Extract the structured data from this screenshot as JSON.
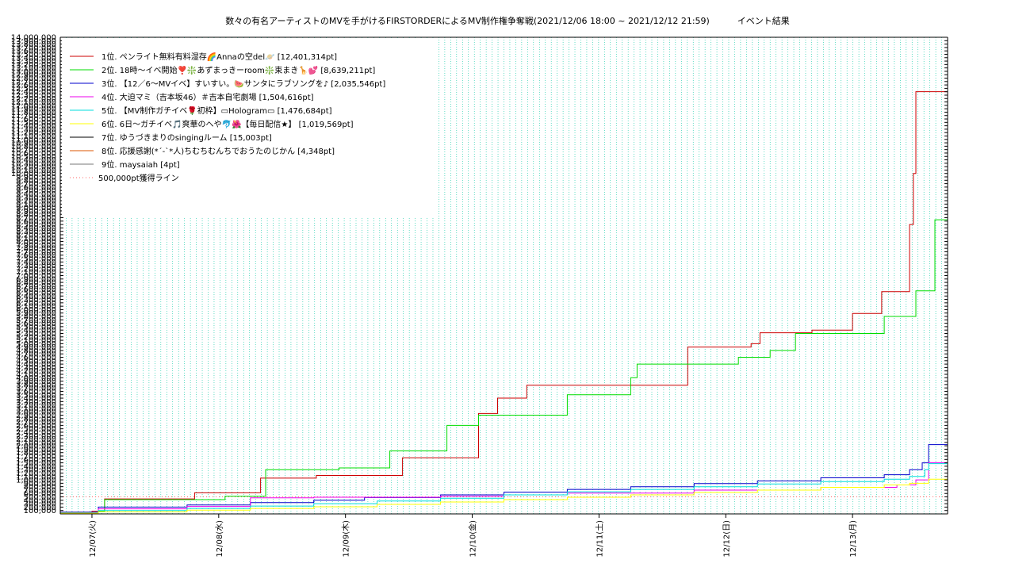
{
  "chart_data": {
    "type": "line",
    "title": "数々の有名アーティストのMVを手がけるFIRSTORDERによるMV制作権争奪戦(2021/12/06 18:00 ~ 2021/12/12 21:59)          イベント結果",
    "xlabel": "",
    "ylabel": "",
    "x_ticks": [
      "12/07(火)",
      "12/08(水)",
      "12/09(木)",
      "12/10(金)",
      "12/11(土)",
      "12/12(日)",
      "12/13(月)"
    ],
    "x_range": [
      "2021-12-06 18:00",
      "2021-12-13 00:00"
    ],
    "ylim": [
      0,
      14000000
    ],
    "grid": true,
    "legend_position": "top-left",
    "series": [
      {
        "name": "1位. ペンライト無料有料湿存🌈Annaの空del🪐 [12,401,314pt]",
        "color": "#cc0000",
        "x": [
          0.0,
          0.25,
          0.35,
          1.05,
          1.06,
          1.55,
          1.58,
          2.0,
          2.02,
          2.2,
          2.7,
          2.72,
          3.3,
          3.4,
          3.45,
          3.65,
          3.68,
          4.9,
          4.95,
          5.4,
          5.45,
          5.5,
          5.52,
          5.9,
          5.93,
          6.2,
          6.25,
          6.45,
          6.48,
          6.62,
          6.7,
          6.73,
          6.75,
          7.0
        ],
        "y": [
          50000,
          80000,
          440000,
          440000,
          620000,
          620000,
          1050000,
          1050000,
          1130000,
          1130000,
          1650000,
          1650000,
          2950000,
          2950000,
          3400000,
          3400000,
          3780000,
          3780000,
          4900000,
          4900000,
          5000000,
          5000000,
          5320000,
          5320000,
          5400000,
          5400000,
          5890000,
          5890000,
          6530000,
          6530000,
          8500000,
          10000000,
          12401314,
          12401314
        ]
      },
      {
        "name": "2位. 18時〜イベ開始❣️❇️あずまっきーroom❇️束まき🦒💕 [8,639,211pt]",
        "color": "#00dd00",
        "x": [
          0.0,
          0.3,
          0.35,
          1.05,
          1.3,
          1.55,
          1.62,
          2.1,
          2.2,
          2.55,
          2.6,
          2.95,
          3.05,
          3.25,
          3.3,
          3.95,
          4.0,
          4.4,
          4.5,
          4.55,
          5.3,
          5.35,
          5.55,
          5.6,
          5.75,
          5.8,
          6.45,
          6.5,
          6.65,
          6.75,
          6.88,
          6.9,
          7.0
        ],
        "y": [
          40000,
          80000,
          420000,
          420000,
          520000,
          520000,
          1300000,
          1300000,
          1350000,
          1350000,
          1850000,
          1850000,
          2600000,
          2600000,
          2900000,
          2900000,
          3500000,
          3500000,
          4000000,
          4400000,
          4400000,
          4600000,
          4600000,
          4800000,
          4800000,
          5300000,
          5300000,
          5800000,
          5800000,
          6550000,
          6550000,
          8639211,
          8639211
        ]
      },
      {
        "name": "3位. 【12／6〜MVイベ】すいすい。🍉サンタにラブソングを♪ [2,035,546pt]",
        "color": "#0000cc",
        "x": [
          0.0,
          0.3,
          1.0,
          1.5,
          2.0,
          2.4,
          3.0,
          3.5,
          4.0,
          4.5,
          5.0,
          5.5,
          6.0,
          6.5,
          6.7,
          6.8,
          6.85,
          7.0
        ],
        "y": [
          50000,
          200000,
          260000,
          330000,
          400000,
          480000,
          560000,
          640000,
          720000,
          800000,
          890000,
          970000,
          1060000,
          1150000,
          1300000,
          1500000,
          2035546,
          2035546
        ]
      },
      {
        "name": "4位. 大迫マミ（吉本坂46）＃吉本自宅劇場 [1,504,616pt]",
        "color": "#ee00ee",
        "x": [
          0.0,
          0.3,
          1.0,
          1.5,
          2.0,
          3.0,
          3.5,
          4.0,
          5.0,
          6.0,
          6.6,
          6.75,
          6.85,
          7.0
        ],
        "y": [
          30000,
          150000,
          220000,
          470000,
          490000,
          520000,
          560000,
          610000,
          700000,
          780000,
          850000,
          1000000,
          1504616,
          1504616
        ]
      },
      {
        "name": "5位. 【MV制作ガチイベ🌹初枠】▭Hologram▭ [1,476,684pt]",
        "color": "#00dddd",
        "x": [
          0.0,
          0.3,
          1.0,
          1.5,
          2.0,
          2.5,
          3.0,
          3.5,
          4.0,
          4.5,
          5.0,
          5.5,
          6.0,
          6.5,
          6.7,
          6.82,
          6.85,
          7.0
        ],
        "y": [
          30000,
          100000,
          160000,
          230000,
          300000,
          380000,
          460000,
          560000,
          650000,
          720000,
          800000,
          880000,
          950000,
          1020000,
          1100000,
          1300000,
          1476684,
          1476684
        ]
      },
      {
        "name": "6位. 6日〜ガチイベ🎵爽華のへや🐬🌺【毎日配信★】 [1,019,569pt]",
        "color": "#ffff00",
        "x": [
          0.0,
          0.3,
          1.0,
          1.5,
          2.0,
          2.5,
          3.0,
          3.5,
          4.0,
          4.5,
          5.0,
          5.5,
          6.0,
          6.5,
          6.7,
          6.85,
          7.0
        ],
        "y": [
          20000,
          60000,
          110000,
          160000,
          210000,
          280000,
          350000,
          420000,
          490000,
          560000,
          630000,
          700000,
          780000,
          850000,
          900000,
          1019569,
          1019569
        ]
      },
      {
        "name": "7位. ゆうづきまりのsingingルーム [15,003pt]",
        "color": "#000000",
        "x": [
          0.0,
          7.0
        ],
        "y": [
          0,
          15003
        ]
      },
      {
        "name": "8位. 応援感謝(*´-`*人)ちむちむんちでおうたのじかん [4,348pt]",
        "color": "#dd5500",
        "x": [
          0.0,
          7.0
        ],
        "y": [
          0,
          4348
        ]
      },
      {
        "name": "9位. maysaiah [4pt]",
        "color": "#777777",
        "x": [
          0.0,
          7.0
        ],
        "y": [
          0,
          4
        ]
      }
    ],
    "reference_line": {
      "name": "500,000pt獲得ライン",
      "value": 500000,
      "color": "#ff6666"
    },
    "y_tick_labels": [
      "100,000",
      "200,000",
      "300,000",
      "400,000",
      "500,000",
      "600,000",
      "700,000",
      "800,000",
      "900,000",
      "1,000,000",
      "1,100,000",
      "1,200,000",
      "1,300,000",
      "1,400,000",
      "1,500,000",
      "1,600,000",
      "1,700,000",
      "1,800,000",
      "1,900,000",
      "2,000,000",
      "2,100,000",
      "2,200,000",
      "2,300,000",
      "2,400,000",
      "2,500,000",
      "2,600,000",
      "2,700,000",
      "2,800,000",
      "2,900,000",
      "3,000,000",
      "3,100,000",
      "3,200,000",
      "3,300,000",
      "3,400,000",
      "3,500,000",
      "3,600,000",
      "3,700,000",
      "3,800,000",
      "3,900,000",
      "4,000,000",
      "4,100,000",
      "4,200,000",
      "4,300,000",
      "4,400,000",
      "4,500,000",
      "4,600,000",
      "4,700,000",
      "4,800,000",
      "4,900,000",
      "5,000,000",
      "5,100,000",
      "5,200,000",
      "5,300,000",
      "5,400,000",
      "5,500,000",
      "5,600,000",
      "5,700,000",
      "5,800,000",
      "5,900,000",
      "6,000,000",
      "6,100,000",
      "6,200,000",
      "6,300,000",
      "6,400,000",
      "6,500,000",
      "6,600,000",
      "6,700,000",
      "6,800,000",
      "6,900,000",
      "7,000,000",
      "7,100,000",
      "7,200,000",
      "7,300,000",
      "7,400,000",
      "7,500,000",
      "7,600,000",
      "7,700,000",
      "7,800,000",
      "7,900,000",
      "8,000,000",
      "8,100,000",
      "8,200,000",
      "8,300,000",
      "8,400,000",
      "8,500,000",
      "8,600,000",
      "8,700,000",
      "8,800,000",
      "8,900,000",
      "9,000,000",
      "9,100,000",
      "9,200,000",
      "9,300,000",
      "9,400,000",
      "9,500,000",
      "9,600,000",
      "9,700,000",
      "9,800,000",
      "9,900,000",
      "10,000,000",
      "10,100,000",
      "10,200,000",
      "10,300,000",
      "10,400,000",
      "10,500,000",
      "10,600,000",
      "10,700,000",
      "10,800,000",
      "10,900,000",
      "11,000,000",
      "11,100,000",
      "11,200,000",
      "11,300,000",
      "11,400,000",
      "11,500,000",
      "11,600,000",
      "11,700,000",
      "11,800,000",
      "11,900,000",
      "12,000,000",
      "12,100,000",
      "12,200,000",
      "12,300,000",
      "12,400,000",
      "12,500,000",
      "12,600,000",
      "12,700,000",
      "12,800,000",
      "12,900,000",
      "13,000,000",
      "13,100,000",
      "13,200,000",
      "13,300,000",
      "13,400,000",
      "13,500,000",
      "13,600,000",
      "13,700,000",
      "13,800,000",
      "13,900,000",
      "14,000,000"
    ],
    "colors": {
      "grid": "#00c8a0",
      "axis": "#000000",
      "background": "#ffffff"
    }
  }
}
